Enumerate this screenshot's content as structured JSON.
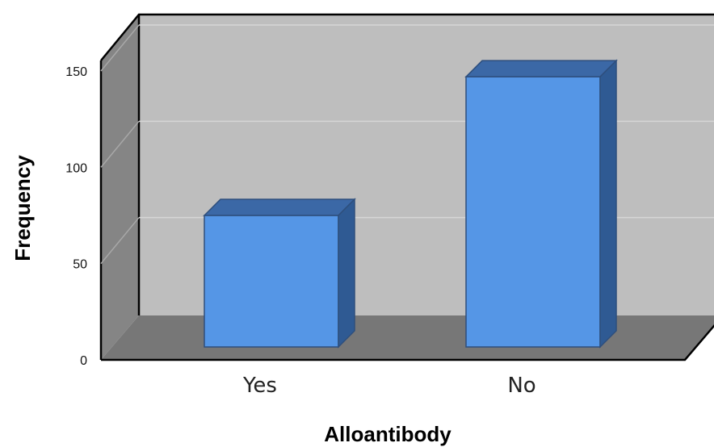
{
  "chart_data": {
    "type": "bar",
    "title": "",
    "xlabel": "Alloantibody",
    "ylabel": "Frequency",
    "categories": [
      "Yes",
      "No"
    ],
    "values": [
      75,
      147
    ],
    "ylim": [
      0,
      150
    ],
    "yticks": [
      0,
      50,
      100,
      150
    ],
    "ytick_labels": [
      "0",
      "50",
      "100",
      "150"
    ],
    "grid": true,
    "legend": "none",
    "bar_color": "#5596e6",
    "bar_top_color": "#3b68a6",
    "bar_side_color": "#2f5a93",
    "back_wall_color": "#bebebe",
    "floor_color": "#777777",
    "left_wall_color": "#858585",
    "style": "3d"
  }
}
